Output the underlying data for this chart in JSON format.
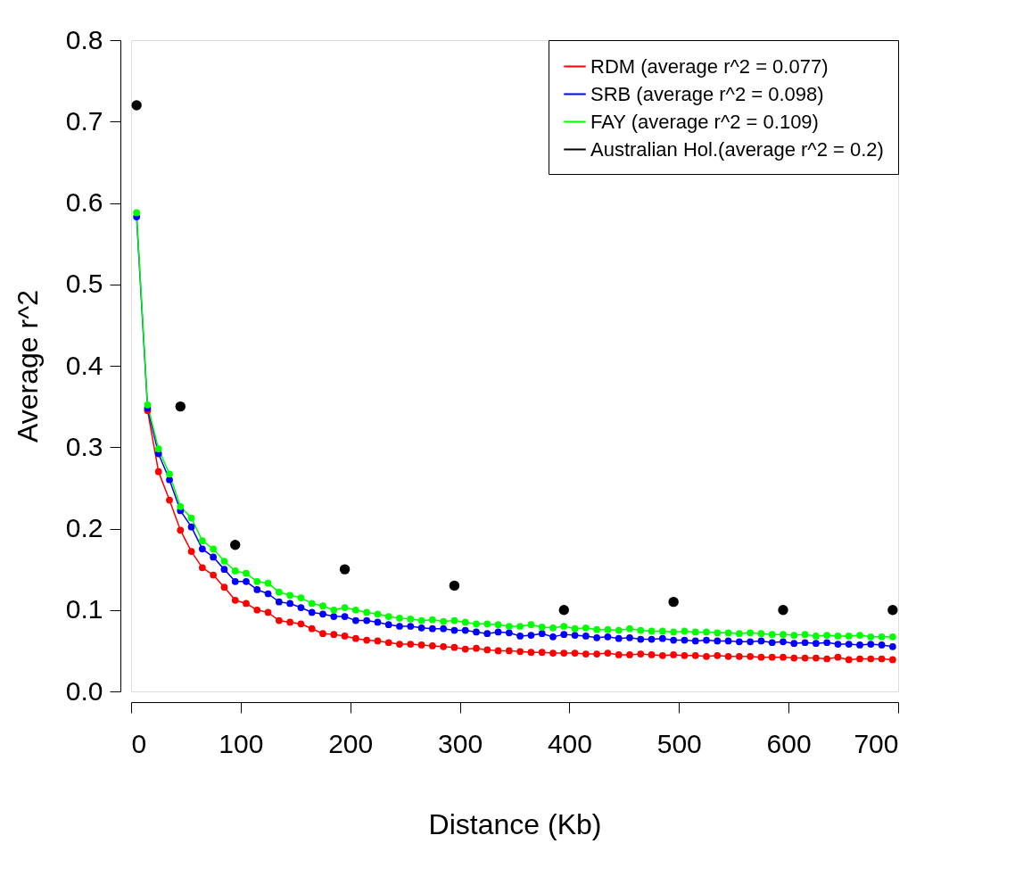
{
  "chart_data": {
    "type": "line",
    "xlabel": "Distance (Kb)",
    "ylabel": "Average r^2",
    "x": [
      5,
      15,
      25,
      35,
      45,
      55,
      65,
      75,
      85,
      95,
      105,
      115,
      125,
      135,
      145,
      155,
      165,
      175,
      185,
      195,
      205,
      215,
      225,
      235,
      245,
      255,
      265,
      275,
      285,
      295,
      305,
      315,
      325,
      335,
      345,
      355,
      365,
      375,
      385,
      395,
      405,
      415,
      425,
      435,
      445,
      455,
      465,
      475,
      485,
      495,
      505,
      515,
      525,
      535,
      545,
      555,
      565,
      575,
      585,
      595,
      605,
      615,
      625,
      635,
      645,
      655,
      665,
      675,
      685,
      695
    ],
    "series": [
      {
        "name": "RDM (average r^2 = 0.077)",
        "color": "#ff0000",
        "values": [
          null,
          0.345,
          0.27,
          0.235,
          0.198,
          0.172,
          0.152,
          0.143,
          0.128,
          0.112,
          0.108,
          0.1,
          0.097,
          0.087,
          0.085,
          0.083,
          0.077,
          0.071,
          0.07,
          0.068,
          0.065,
          0.063,
          0.062,
          0.06,
          0.058,
          0.058,
          0.057,
          0.056,
          0.055,
          0.054,
          0.052,
          0.053,
          0.051,
          0.05,
          0.05,
          0.049,
          0.048,
          0.048,
          0.047,
          0.047,
          0.047,
          0.046,
          0.046,
          0.047,
          0.045,
          0.045,
          0.046,
          0.045,
          0.044,
          0.045,
          0.044,
          0.044,
          0.043,
          0.044,
          0.043,
          0.043,
          0.043,
          0.042,
          0.042,
          0.042,
          0.041,
          0.041,
          0.041,
          0.04,
          0.042,
          0.039,
          0.04,
          0.04,
          0.04,
          0.039
        ]
      },
      {
        "name": "SRB (average r^2 = 0.098)",
        "color": "#0000ff",
        "values": [
          0.583,
          0.348,
          0.292,
          0.26,
          0.222,
          0.202,
          0.175,
          0.165,
          0.15,
          0.135,
          0.135,
          0.125,
          0.12,
          0.11,
          0.108,
          0.103,
          0.097,
          0.095,
          0.092,
          0.092,
          0.087,
          0.087,
          0.085,
          0.082,
          0.08,
          0.08,
          0.078,
          0.077,
          0.077,
          0.075,
          0.075,
          0.073,
          0.071,
          0.073,
          0.072,
          0.068,
          0.069,
          0.071,
          0.067,
          0.07,
          0.069,
          0.068,
          0.066,
          0.067,
          0.065,
          0.066,
          0.064,
          0.064,
          0.065,
          0.063,
          0.063,
          0.062,
          0.063,
          0.062,
          0.062,
          0.061,
          0.061,
          0.062,
          0.06,
          0.061,
          0.059,
          0.06,
          0.059,
          0.06,
          0.058,
          0.058,
          0.057,
          0.058,
          0.057,
          0.055
        ]
      },
      {
        "name": "FAY (average r^2 = 0.109)",
        "color": "#00ff00",
        "values": [
          0.588,
          0.352,
          0.298,
          0.267,
          0.227,
          0.213,
          0.185,
          0.175,
          0.16,
          0.148,
          0.145,
          0.135,
          0.133,
          0.122,
          0.118,
          0.115,
          0.108,
          0.105,
          0.1,
          0.103,
          0.1,
          0.097,
          0.095,
          0.092,
          0.09,
          0.089,
          0.087,
          0.088,
          0.086,
          0.087,
          0.085,
          0.083,
          0.083,
          0.082,
          0.08,
          0.08,
          0.082,
          0.079,
          0.078,
          0.08,
          0.077,
          0.078,
          0.076,
          0.076,
          0.075,
          0.077,
          0.075,
          0.074,
          0.074,
          0.073,
          0.074,
          0.073,
          0.073,
          0.072,
          0.072,
          0.071,
          0.072,
          0.071,
          0.07,
          0.07,
          0.069,
          0.07,
          0.068,
          0.069,
          0.068,
          0.068,
          0.069,
          0.067,
          0.067,
          0.067
        ]
      },
      {
        "name": "Australian Hol.(average r^2 = 0.2)",
        "color": "#000000",
        "type": "scatter",
        "x": [
          5,
          45,
          95,
          195,
          295,
          395,
          495,
          595,
          695
        ],
        "values": [
          0.72,
          0.35,
          0.18,
          0.15,
          0.13,
          0.1,
          0.11,
          0.1,
          0.1
        ]
      }
    ],
    "xlim": [
      0,
      700
    ],
    "xticks": [
      0,
      100,
      200,
      300,
      400,
      500,
      600,
      700
    ],
    "ylim": [
      0,
      0.8
    ],
    "yticks": [
      {
        "value": 0,
        "label": "0.0"
      },
      0.1,
      0.2,
      0.3,
      0.4,
      0.5,
      0.6,
      0.7,
      0.8
    ],
    "marker": "circle",
    "line_style": "solid",
    "grid": false,
    "legend": "top right"
  }
}
